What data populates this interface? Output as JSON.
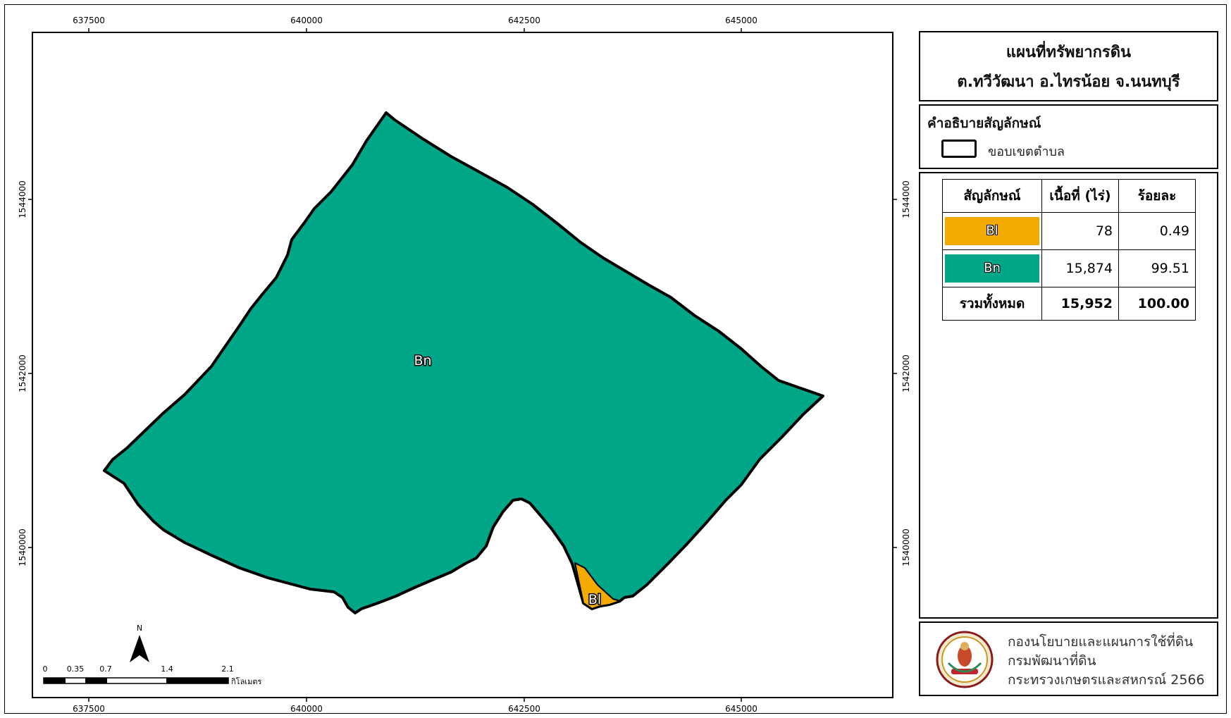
{
  "map": {
    "x_ticks": [
      "637500",
      "640000",
      "642500",
      "645000"
    ],
    "y_ticks": [
      "1544000",
      "1542000",
      "1540000"
    ],
    "labels": {
      "bn": "Bn",
      "bl": "Bl"
    },
    "colors": {
      "bn": "#00a688",
      "bl": "#f2a900",
      "boundary": "#000000"
    },
    "north_arrow": "N",
    "scale_bar": {
      "ticks": [
        "0",
        "0.35",
        "0.7",
        "1.4",
        "2.1"
      ],
      "unit": "กิโลเมตร"
    }
  },
  "title": {
    "line1": "แผนที่ทรัพยากรดิน",
    "line2": "ต.ทวีวัฒนา อ.ไทรน้อย จ.นนทบุรี"
  },
  "legend": {
    "heading": "คำอธิบายสัญลักษณ์",
    "boundary_label": "ขอบเขตตำบล"
  },
  "table": {
    "headers": [
      "สัญลักษณ์",
      "เนื้อที่ (ไร่)",
      "ร้อยละ"
    ],
    "rows": [
      {
        "symbol": "Bl",
        "area": "78",
        "percent": "0.49",
        "color": "#f2a900"
      },
      {
        "symbol": "Bn",
        "area": "15,874",
        "percent": "99.51",
        "color": "#00a688"
      }
    ],
    "total": {
      "label": "รวมทั้งหมด",
      "area": "15,952",
      "percent": "100.00"
    }
  },
  "org": {
    "line1": "กองนโยบายและแผนการใช้ที่ดิน",
    "line2": "กรมพัฒนาที่ดิน",
    "line3": "กระทรวงเกษตรและสหกรณ์ 2566"
  }
}
